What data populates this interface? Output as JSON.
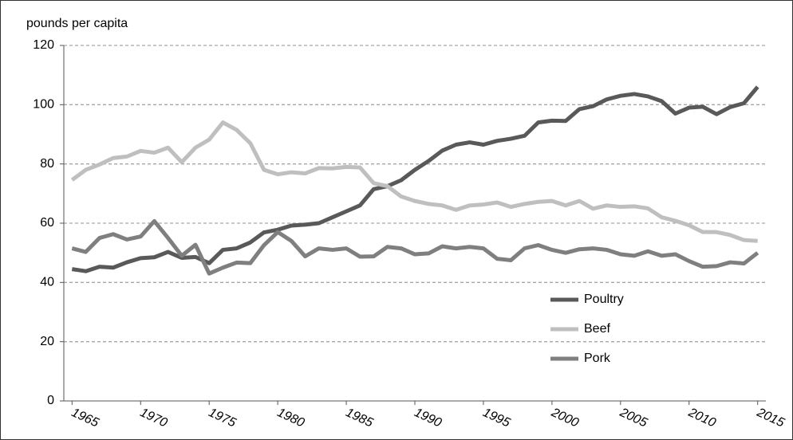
{
  "chart_data": {
    "type": "line",
    "y_axis_label": "pounds per capita",
    "x": [
      1965,
      1966,
      1967,
      1968,
      1969,
      1970,
      1971,
      1972,
      1973,
      1974,
      1975,
      1976,
      1977,
      1978,
      1979,
      1980,
      1981,
      1982,
      1983,
      1984,
      1985,
      1986,
      1987,
      1988,
      1989,
      1990,
      1991,
      1992,
      1993,
      1994,
      1995,
      1996,
      1997,
      1998,
      1999,
      2000,
      2001,
      2002,
      2003,
      2004,
      2005,
      2006,
      2007,
      2008,
      2009,
      2010,
      2011,
      2012,
      2013,
      2014,
      2015
    ],
    "series": [
      {
        "name": "Poultry",
        "color": "#595959",
        "values": [
          44.5,
          43.8,
          45.3,
          45.0,
          46.8,
          48.2,
          48.5,
          50.3,
          48.3,
          48.6,
          46.5,
          51,
          51.5,
          53.5,
          56.9,
          57.8,
          59.2,
          59.5,
          60,
          62,
          64,
          66,
          71.5,
          72.5,
          74.5,
          78,
          81,
          84.5,
          86.5,
          87.3,
          86.5,
          87.8,
          88.5,
          89.5,
          94,
          94.6,
          94.5,
          98.5,
          99.5,
          101.8,
          103,
          103.6,
          102.8,
          101.2,
          97,
          99,
          99.3,
          96.8,
          99.2,
          100.5,
          106
        ]
      },
      {
        "name": "Beef",
        "color": "#bfbfbf",
        "values": [
          74.6,
          78,
          79.8,
          82,
          82.5,
          84.4,
          83.8,
          85.5,
          80.6,
          85.5,
          88.2,
          94,
          91.5,
          87,
          78,
          76.5,
          77.2,
          76.8,
          78.6,
          78.5,
          79,
          78.8,
          73.5,
          72.5,
          69,
          67.5,
          66.5,
          66,
          64.5,
          66,
          66.3,
          67,
          65.5,
          66.5,
          67.2,
          67.5,
          66,
          67.5,
          64.9,
          66,
          65.5,
          65.7,
          65,
          62,
          60.8,
          59.3,
          57,
          57,
          56,
          54.3,
          54
        ]
      },
      {
        "name": "Pork",
        "color": "#7f7f7f",
        "values": [
          51.5,
          50.3,
          55,
          56.3,
          54.5,
          55.5,
          60.7,
          55,
          49,
          52.7,
          43,
          45,
          46.7,
          46.5,
          52.6,
          57,
          54,
          48.8,
          51.5,
          51,
          51.5,
          48.7,
          48.8,
          52,
          51.5,
          49.5,
          49.8,
          52.2,
          51.5,
          52,
          51.5,
          48,
          47.5,
          51.5,
          52.6,
          51,
          50,
          51.2,
          51.5,
          51,
          49.5,
          49,
          50.5,
          49,
          49.5,
          47.2,
          45.3,
          45.5,
          46.8,
          46.4,
          50
        ]
      }
    ],
    "xlim": [
      1964.4,
      2015.6
    ],
    "xticks": [
      1965,
      1970,
      1975,
      1980,
      1985,
      1990,
      1995,
      2000,
      2005,
      2010,
      2015
    ],
    "ylim": [
      0,
      120
    ],
    "yticks": [
      0,
      20,
      40,
      60,
      80,
      100,
      120
    ],
    "grid": true,
    "legend": "lower right"
  }
}
